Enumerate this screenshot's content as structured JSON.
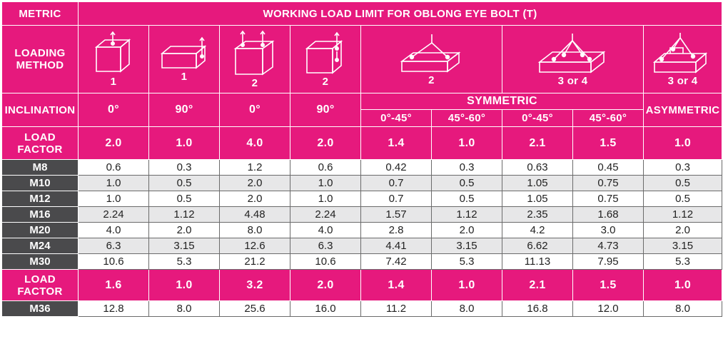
{
  "header": {
    "metric_label": "METRIC",
    "title": "WORKING LOAD LIMIT FOR OBLONG EYE BOLT  (T)",
    "loading_method_label": [
      "LOADING",
      "METHOD"
    ],
    "icons": [
      {
        "name": "single-vertical-lift-icon",
        "caption": "1"
      },
      {
        "name": "single-side-lift-icon",
        "caption": "1"
      },
      {
        "name": "double-vertical-lift-icon",
        "caption": "2"
      },
      {
        "name": "double-side-lift-icon",
        "caption": "2"
      },
      {
        "name": "two-leg-sling-icon",
        "caption": "2"
      },
      {
        "name": "four-leg-sling-icon",
        "caption": "3 or 4"
      },
      {
        "name": "asymmetric-sling-icon",
        "caption": "3 or 4"
      }
    ],
    "inclination_label": "INCLINATION",
    "inclinations_simple": [
      "0°",
      "90°",
      "0°",
      "90°"
    ],
    "symmetric_label": "SYMMETRIC",
    "symmetric_angles": [
      "0°-45°",
      "45°-60°",
      "0°-45°",
      "45°-60°"
    ],
    "asymmetric_label": "ASYMMETRIC",
    "load_factor_label": [
      "LOAD",
      "FACTOR"
    ],
    "load_factors_1": [
      "2.0",
      "1.0",
      "4.0",
      "2.0",
      "1.4",
      "1.0",
      "2.1",
      "1.5",
      "1.0"
    ]
  },
  "rows": [
    {
      "size": "M8",
      "values": [
        "0.6",
        "0.3",
        "1.2",
        "0.6",
        "0.42",
        "0.3",
        "0.63",
        "0.45",
        "0.3"
      ]
    },
    {
      "size": "M10",
      "values": [
        "1.0",
        "0.5",
        "2.0",
        "1.0",
        "0.7",
        "0.5",
        "1.05",
        "0.75",
        "0.5"
      ]
    },
    {
      "size": "M12",
      "values": [
        "1.0",
        "0.5",
        "2.0",
        "1.0",
        "0.7",
        "0.5",
        "1.05",
        "0.75",
        "0.5"
      ]
    },
    {
      "size": "M16",
      "values": [
        "2.24",
        "1.12",
        "4.48",
        "2.24",
        "1.57",
        "1.12",
        "2.35",
        "1.68",
        "1.12"
      ]
    },
    {
      "size": "M20",
      "values": [
        "4.0",
        "2.0",
        "8.0",
        "4.0",
        "2.8",
        "2.0",
        "4.2",
        "3.0",
        "2.0"
      ]
    },
    {
      "size": "M24",
      "values": [
        "6.3",
        "3.15",
        "12.6",
        "6.3",
        "4.41",
        "3.15",
        "6.62",
        "4.73",
        "3.15"
      ]
    },
    {
      "size": "M30",
      "values": [
        "10.6",
        "5.3",
        "21.2",
        "10.6",
        "7.42",
        "5.3",
        "11.13",
        "7.95",
        "5.3"
      ]
    }
  ],
  "load_factors_2": [
    "1.6",
    "1.0",
    "3.2",
    "2.0",
    "1.4",
    "1.0",
    "2.1",
    "1.5",
    "1.0"
  ],
  "last_row": {
    "size": "M36",
    "values": [
      "12.8",
      "8.0",
      "25.6",
      "16.0",
      "11.2",
      "8.0",
      "16.8",
      "12.0",
      "8.0"
    ]
  },
  "colors": {
    "accent": "#e6197d",
    "size_column": "#4a4a4c",
    "stripe": "#e7e7e8"
  }
}
